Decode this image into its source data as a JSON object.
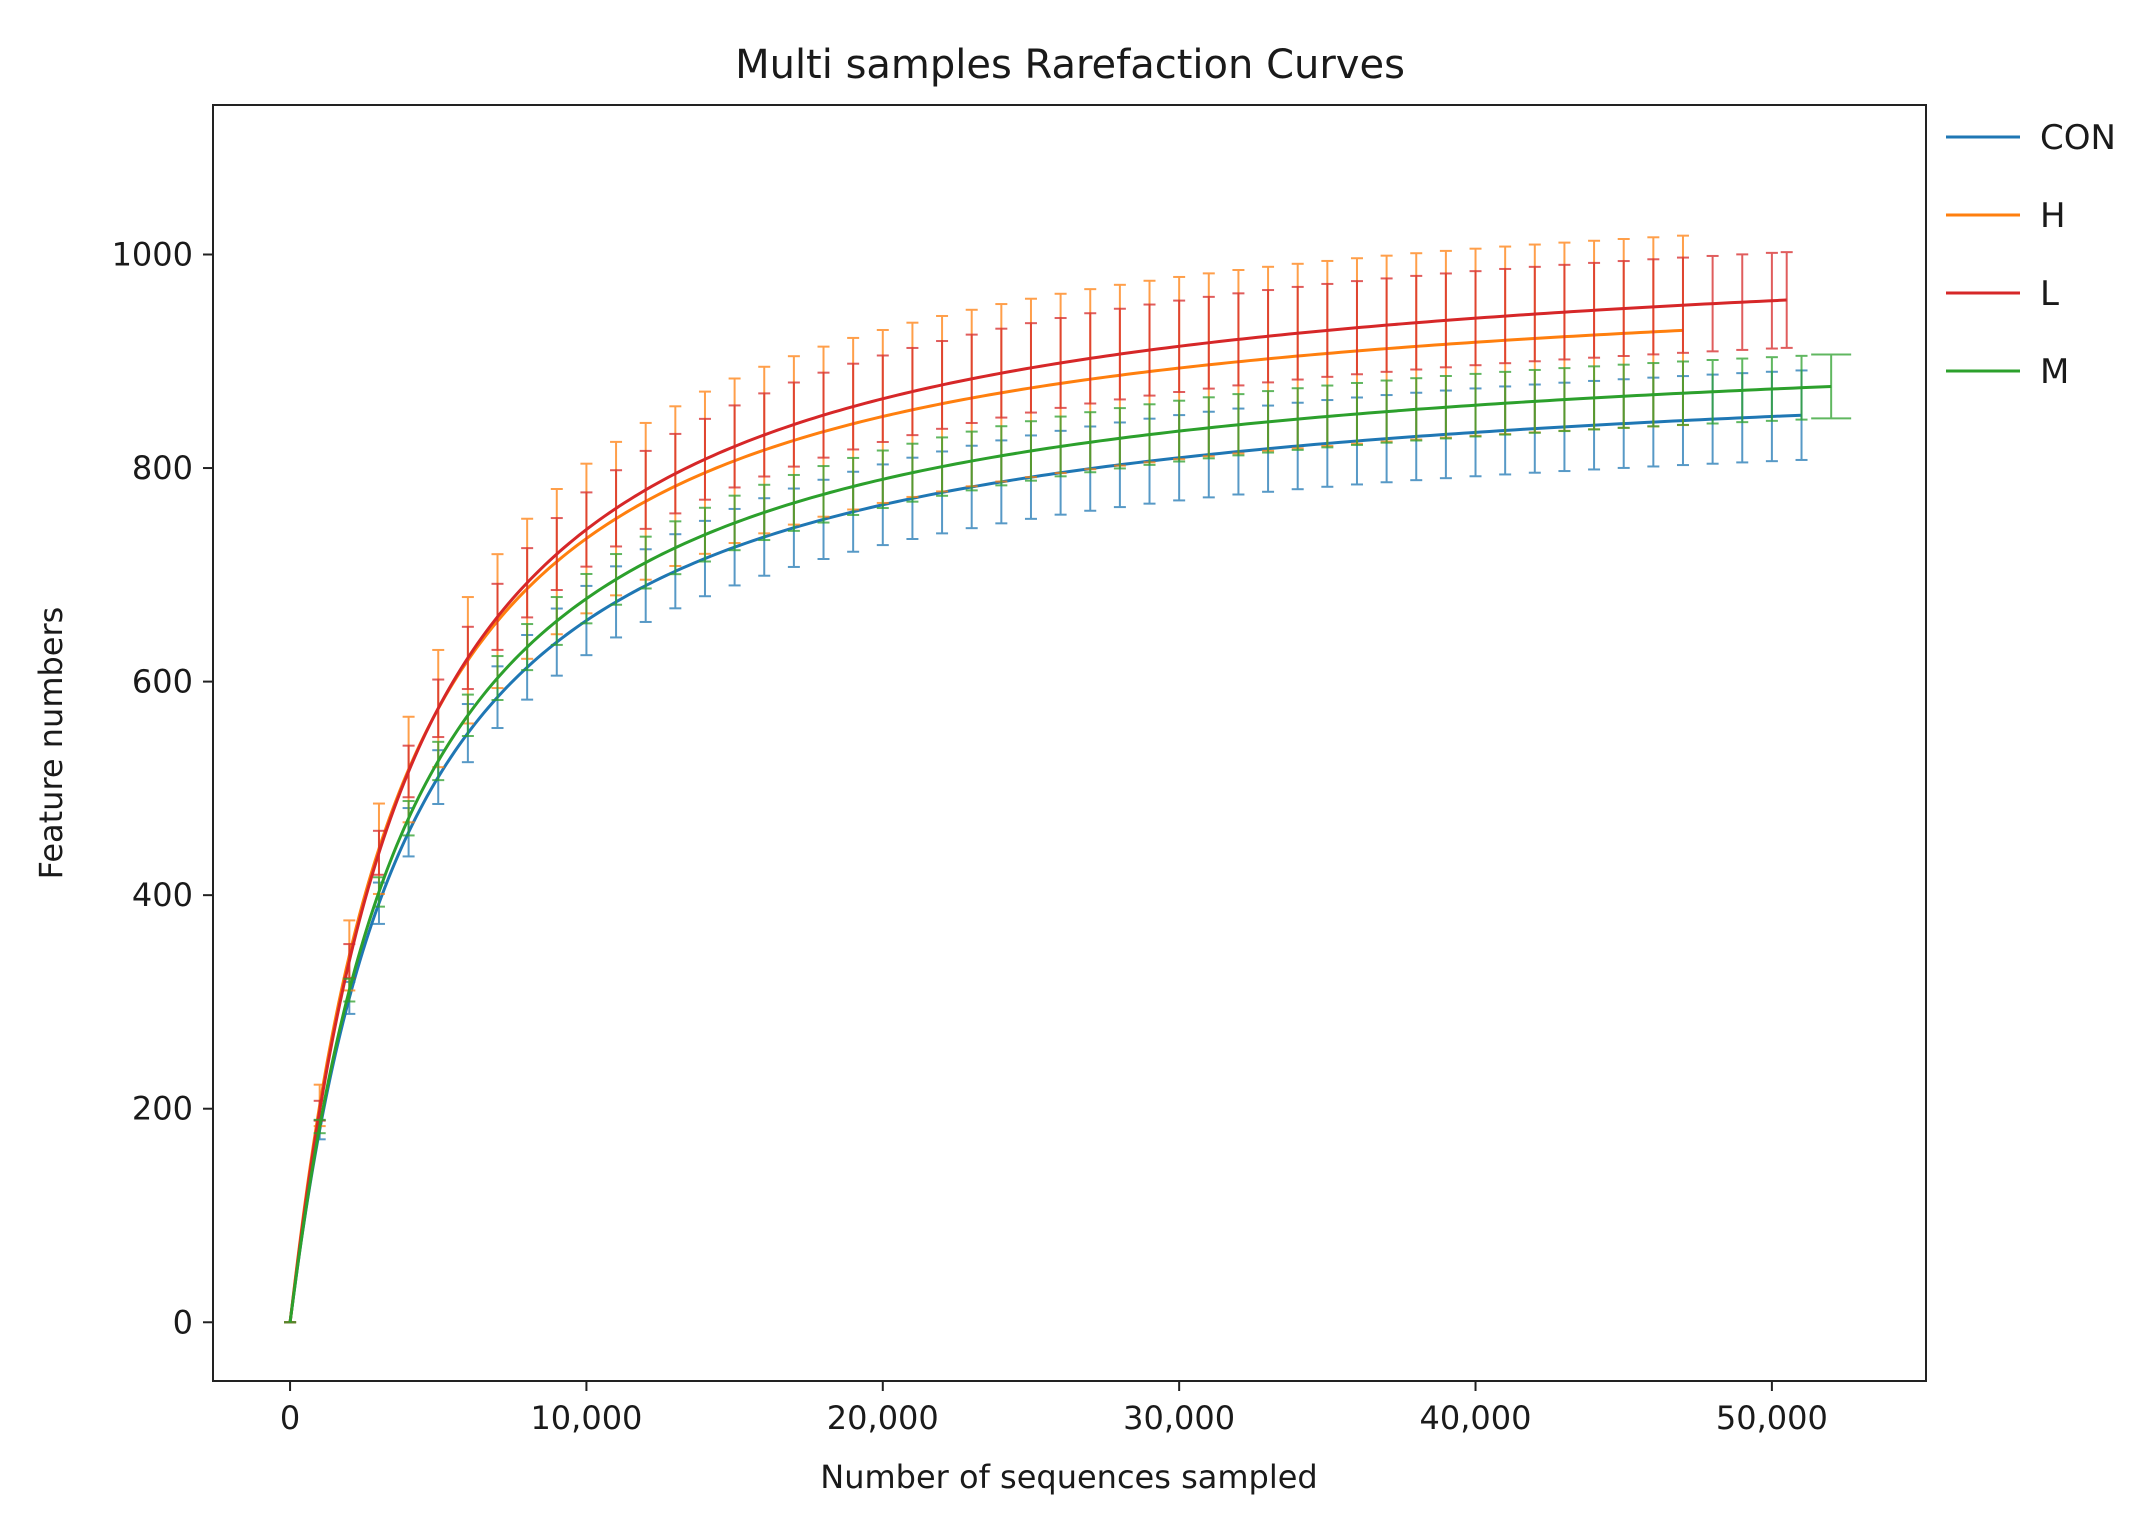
{
  "chart_data": {
    "type": "line",
    "title": "Multi samples Rarefaction Curves",
    "xlabel": "Number of sequences sampled",
    "ylabel": "Feature numbers",
    "xlim": [
      -2600,
      55200
    ],
    "ylim": [
      -55,
      1140
    ],
    "xticks": [
      0,
      10000,
      20000,
      30000,
      40000,
      50000
    ],
    "xtick_labels": [
      "0",
      "10,000",
      "20,000",
      "30,000",
      "40,000",
      "50,000"
    ],
    "yticks": [
      0,
      200,
      400,
      600,
      800,
      1000
    ],
    "ytick_labels": [
      "0",
      "200",
      "400",
      "600",
      "800",
      "1000"
    ],
    "grid": false,
    "legend_position": "outside-right",
    "error_bars": "mean ± standard deviation at each sampling depth",
    "series": [
      {
        "name": "CON",
        "color": "#1f77b4",
        "asymptote": 912,
        "half_depth": 3950,
        "shape": 1.02,
        "max_depth": 51000,
        "error_at_plateau": 45
      },
      {
        "name": "H",
        "color": "#ff7f0e",
        "asymptote": 995,
        "half_depth": 3700,
        "shape": 1.04,
        "max_depth": 47000,
        "error_at_plateau": 95
      },
      {
        "name": "L",
        "color": "#d62728",
        "asymptote": 1025,
        "half_depth": 3950,
        "shape": 1.04,
        "max_depth": 50500,
        "error_at_plateau": 48
      },
      {
        "name": "M",
        "color": "#2ca02c",
        "asymptote": 938,
        "half_depth": 3950,
        "shape": 1.03,
        "max_depth": 52000,
        "error_at_plateau": 32
      }
    ]
  }
}
